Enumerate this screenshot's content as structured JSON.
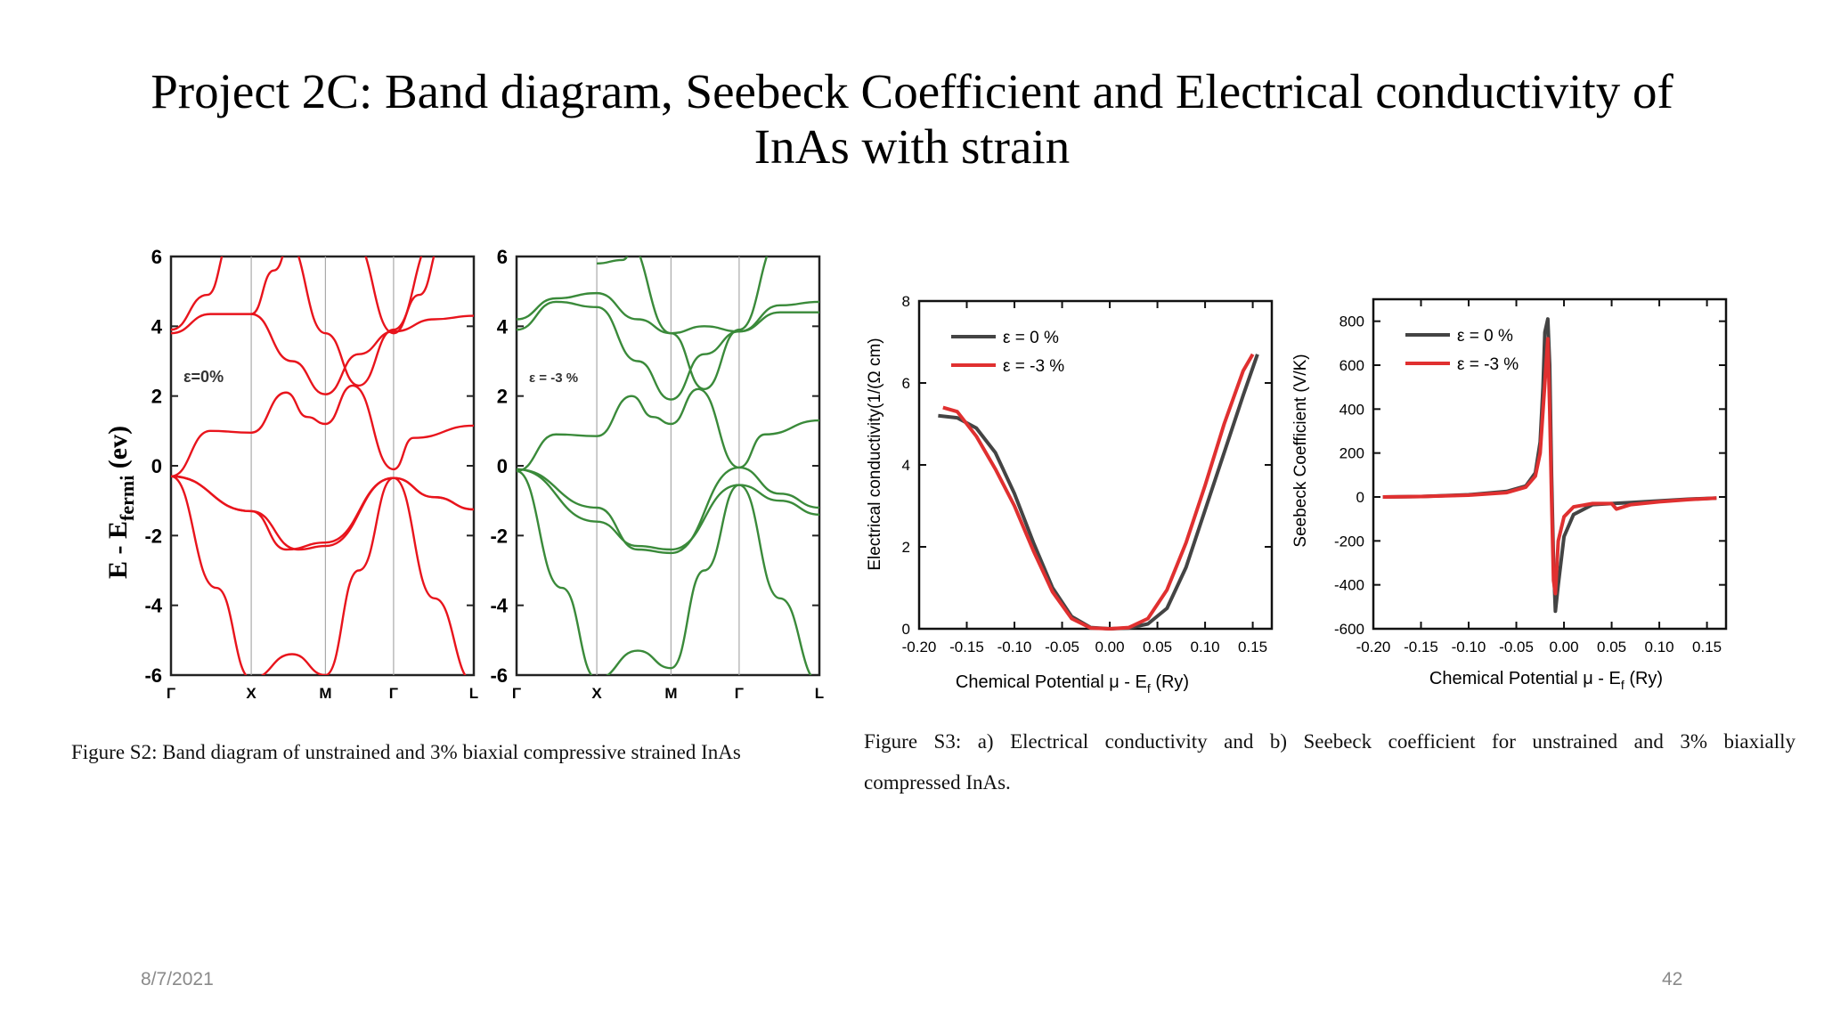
{
  "slide": {
    "title_line1": "Project 2C: Band diagram, Seebeck Coefficient and Electrical conductivity of",
    "title_line2": "InAs with strain",
    "caption_left": "Figure S2: Band diagram of unstrained and 3% biaxial compressive strained InAs",
    "caption_right_line1": "Figure S3: a) Electrical conductivity and b) Seebeck coefficient for unstrained and 3% biaxially",
    "caption_right_line2": "compressed InAs.",
    "date": "8/7/2021",
    "page_number": "42"
  },
  "chart_data": [
    {
      "id": "band-unstrained",
      "type": "line",
      "ylabel": "E - E",
      "ylabel_sub": "fermi",
      "ylabel_unit": "(ev)",
      "annotation": "ε=0%",
      "ylim": [
        -6,
        6
      ],
      "yticks": [
        "6",
        "4",
        "2",
        "0",
        "-2",
        "-4",
        "-6"
      ],
      "kpoints": [
        "Γ",
        "X",
        "M",
        "Γ",
        "L"
      ],
      "color": "#e8141c"
    },
    {
      "id": "band-strained",
      "type": "line",
      "annotation": "ε = -3 %",
      "ylim": [
        -6,
        6
      ],
      "yticks": [
        "6",
        "4",
        "2",
        "0",
        "-2",
        "-4",
        "-6"
      ],
      "kpoints": [
        "Γ",
        "X",
        "M",
        "Γ",
        "L"
      ],
      "color": "#3a8a3a"
    },
    {
      "id": "conductivity",
      "type": "line",
      "xlabel": "Chemical Potential μ - E",
      "xlabel_sub": "f",
      "xlabel_unit": "(Ry)",
      "ylabel": "Electrical conductivity(1/(Ω cm)",
      "xlim": [
        -0.2,
        0.17
      ],
      "ylim": [
        0,
        8
      ],
      "xticks": [
        "-0.20",
        "-0.15",
        "-0.10",
        "-0.05",
        "0.00",
        "0.05",
        "0.10",
        "0.15"
      ],
      "yticks": [
        "0",
        "2",
        "4",
        "6",
        "8"
      ],
      "series": [
        {
          "name": "ε = 0 %",
          "color": "#444444",
          "x": [
            -0.18,
            -0.16,
            -0.14,
            -0.12,
            -0.1,
            -0.08,
            -0.06,
            -0.04,
            -0.02,
            0.0,
            0.02,
            0.04,
            0.06,
            0.08,
            0.1,
            0.12,
            0.14,
            0.155
          ],
          "y": [
            5.2,
            5.15,
            4.9,
            4.3,
            3.3,
            2.1,
            1.0,
            0.3,
            0.03,
            0.0,
            0.02,
            0.12,
            0.5,
            1.5,
            2.9,
            4.3,
            5.7,
            6.7
          ]
        },
        {
          "name": "ε = -3 %",
          "color": "#e03030",
          "x": [
            -0.175,
            -0.16,
            -0.14,
            -0.12,
            -0.1,
            -0.08,
            -0.06,
            -0.04,
            -0.02,
            0.0,
            0.02,
            0.04,
            0.06,
            0.08,
            0.1,
            0.12,
            0.14,
            0.15
          ],
          "y": [
            5.4,
            5.3,
            4.7,
            3.9,
            3.0,
            1.9,
            0.9,
            0.25,
            0.02,
            0.0,
            0.03,
            0.25,
            0.95,
            2.1,
            3.5,
            5.0,
            6.3,
            6.7
          ]
        }
      ],
      "legend": "top-left"
    },
    {
      "id": "seebeck",
      "type": "line",
      "xlabel": "Chemical Potential μ - E",
      "xlabel_sub": "f",
      "xlabel_unit": "(Ry)",
      "ylabel": "Seebeck Coefficient (V/K)",
      "xlim": [
        -0.2,
        0.17
      ],
      "ylim": [
        -600,
        900
      ],
      "xticks": [
        "-0.20",
        "-0.15",
        "-0.10",
        "-0.05",
        "0.00",
        "0.05",
        "0.10",
        "0.15"
      ],
      "yticks": [
        "-600",
        "-400",
        "-200",
        "0",
        "200",
        "400",
        "600",
        "800"
      ],
      "series": [
        {
          "name": "ε = 0 %",
          "color": "#444444",
          "x": [
            -0.19,
            -0.15,
            -0.1,
            -0.06,
            -0.04,
            -0.03,
            -0.025,
            -0.022,
            -0.02,
            -0.017,
            -0.015,
            -0.013,
            -0.011,
            -0.009,
            -0.006,
            0.0,
            0.01,
            0.03,
            0.05,
            0.07,
            0.1,
            0.13,
            0.16
          ],
          "y": [
            0,
            2,
            10,
            25,
            50,
            110,
            250,
            500,
            750,
            810,
            600,
            100,
            -300,
            -520,
            -400,
            -180,
            -80,
            -35,
            -30,
            -25,
            -18,
            -10,
            -5
          ]
        },
        {
          "name": "ε = -3 %",
          "color": "#e03030",
          "x": [
            -0.19,
            -0.15,
            -0.1,
            -0.06,
            -0.04,
            -0.03,
            -0.025,
            -0.02,
            -0.017,
            -0.015,
            -0.013,
            -0.011,
            -0.009,
            -0.006,
            0.0,
            0.01,
            0.03,
            0.05,
            0.055,
            0.07,
            0.1,
            0.13,
            0.16
          ],
          "y": [
            0,
            2,
            8,
            20,
            45,
            95,
            200,
            520,
            720,
            400,
            0,
            -380,
            -440,
            -200,
            -90,
            -45,
            -30,
            -30,
            -55,
            -35,
            -22,
            -12,
            -5
          ]
        }
      ],
      "legend": "top-left"
    }
  ]
}
